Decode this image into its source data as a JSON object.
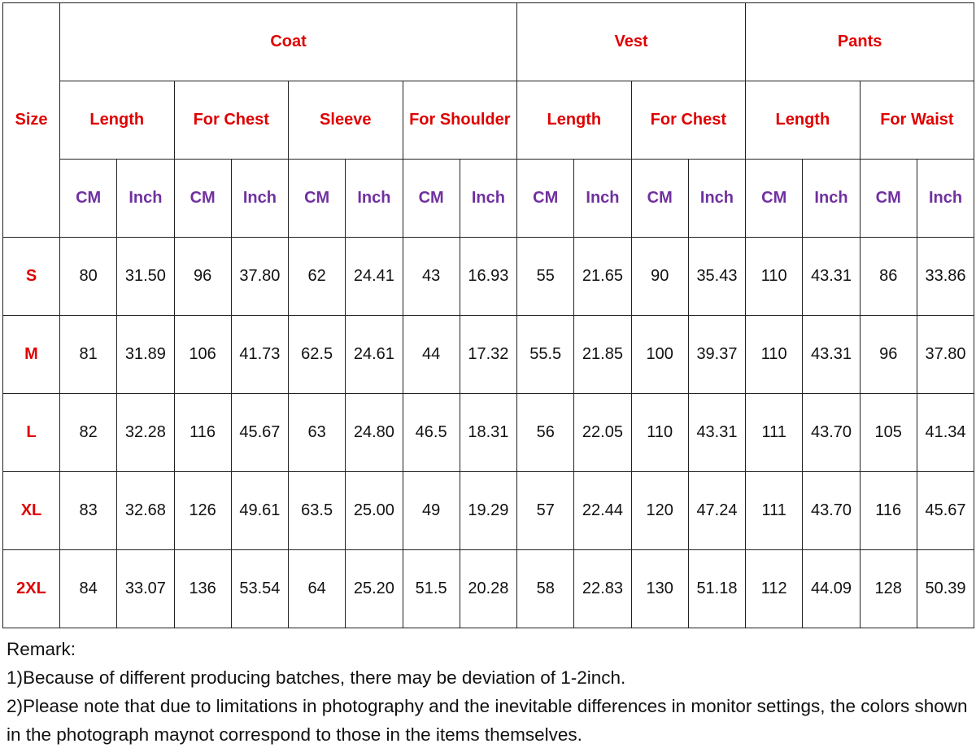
{
  "table": {
    "corner": "Size",
    "groups": [
      {
        "label": "Coat",
        "subgroups": [
          "Length",
          "For Chest",
          "Sleeve",
          "For Shoulder"
        ]
      },
      {
        "label": "Vest",
        "subgroups": [
          "Length",
          "For Chest"
        ]
      },
      {
        "label": "Pants",
        "subgroups": [
          "Length",
          "For Waist"
        ]
      }
    ],
    "units": [
      "CM",
      "Inch"
    ],
    "rows": [
      [
        "S",
        "80",
        "31.50",
        "96",
        "37.80",
        "62",
        "24.41",
        "43",
        "16.93",
        "55",
        "21.65",
        "90",
        "35.43",
        "110",
        "43.31",
        "86",
        "33.86"
      ],
      [
        "M",
        "81",
        "31.89",
        "106",
        "41.73",
        "62.5",
        "24.61",
        "44",
        "17.32",
        "55.5",
        "21.85",
        "100",
        "39.37",
        "110",
        "43.31",
        "96",
        "37.80"
      ],
      [
        "L",
        "82",
        "32.28",
        "116",
        "45.67",
        "63",
        "24.80",
        "46.5",
        "18.31",
        "56",
        "22.05",
        "110",
        "43.31",
        "111",
        "43.70",
        "105",
        "41.34"
      ],
      [
        "XL",
        "83",
        "32.68",
        "126",
        "49.61",
        "63.5",
        "25.00",
        "49",
        "19.29",
        "57",
        "22.44",
        "120",
        "47.24",
        "111",
        "43.70",
        "116",
        "45.67"
      ],
      [
        "2XL",
        "84",
        "33.07",
        "136",
        "53.54",
        "64",
        "25.20",
        "51.5",
        "20.28",
        "58",
        "22.83",
        "130",
        "51.18",
        "112",
        "44.09",
        "128",
        "50.39"
      ]
    ]
  },
  "remarks": {
    "title": "Remark:",
    "items": [
      "1)Because of different producing batches, there may be deviation of 1-2inch.",
      "2)Please note that due to limitations in photography and the inevitable differences in monitor settings, the colors shown in the photograph maynot correspond to those in the items themselves."
    ]
  }
}
